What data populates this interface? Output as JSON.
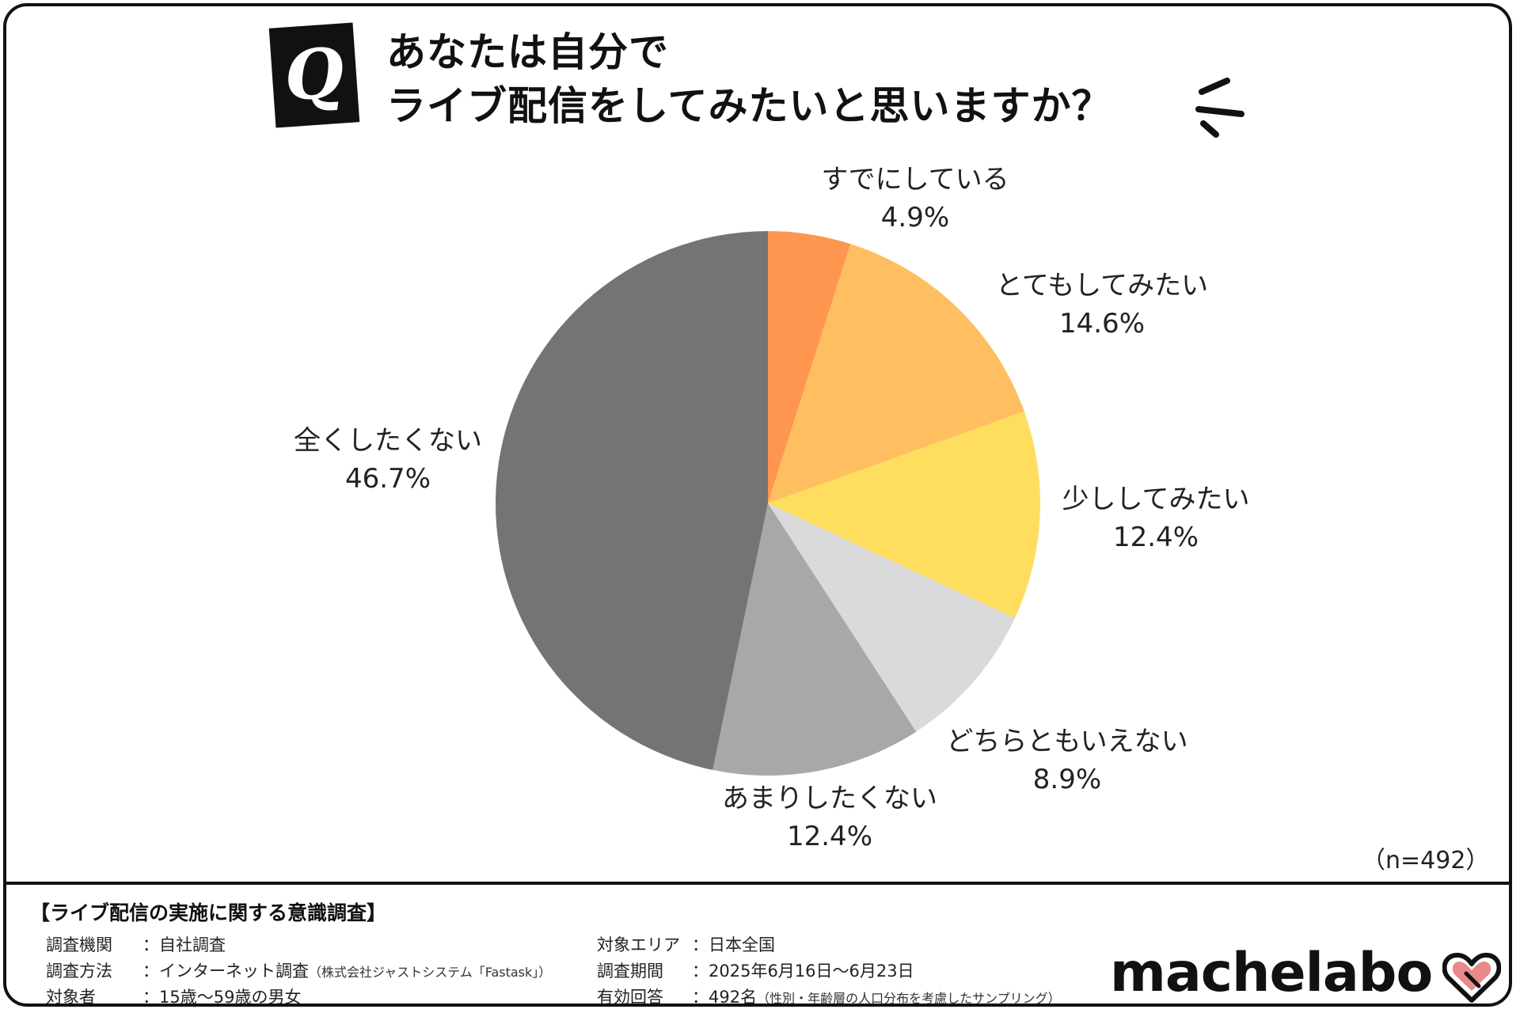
{
  "header": {
    "q_badge": "Q",
    "title_line1": "あなたは自分で",
    "title_line2": "ライブ配信をしてみたいと思いますか？"
  },
  "chart_data": {
    "type": "pie",
    "title": "あなたは自分でライブ配信をしてみたいと思いますか？",
    "labels": [
      "すでにしている",
      "とてもしてみたい",
      "少ししてみたい",
      "どちらともいえない",
      "あまりしたくない",
      "全くしたくない"
    ],
    "values": [
      4.9,
      14.6,
      12.4,
      8.9,
      12.4,
      46.7
    ],
    "value_labels": [
      "4.9%",
      "14.6%",
      "12.4%",
      "8.9%",
      "12.4%",
      "46.7%"
    ],
    "colors": [
      "#FF9650",
      "#FFBE5F",
      "#FFDD5E",
      "#DADADA",
      "#A8A8A8",
      "#747474"
    ],
    "start": "top",
    "direction": "clockwise"
  },
  "sample_size": "（n=492）",
  "survey": {
    "title": "【ライブ配信の実施に関する意識調査】",
    "left": [
      {
        "key": "調査機関",
        "sep": "：",
        "value": "自社調査",
        "note": ""
      },
      {
        "key": "調査方法",
        "sep": "：",
        "value": "インターネット調査",
        "note": "（株式会社ジャストシステム「Fastask」）"
      },
      {
        "key": "対象者",
        "sep": "：",
        "value": "15歳〜59歳の男女",
        "note": ""
      }
    ],
    "right": [
      {
        "key": "対象エリア",
        "sep": "：",
        "value": "日本全国",
        "note": ""
      },
      {
        "key": "調査期間",
        "sep": "：",
        "value": "2025年6月16日〜6月23日",
        "note": ""
      },
      {
        "key": "有効回答",
        "sep": "：",
        "value": "492名",
        "note": "（性別・年齢層の人口分布を考慮したサンプリング）"
      }
    ]
  },
  "brand": {
    "logo_text": "machelabo",
    "heart_icon": "heart-icon",
    "heart_color": "#E98A8A"
  }
}
